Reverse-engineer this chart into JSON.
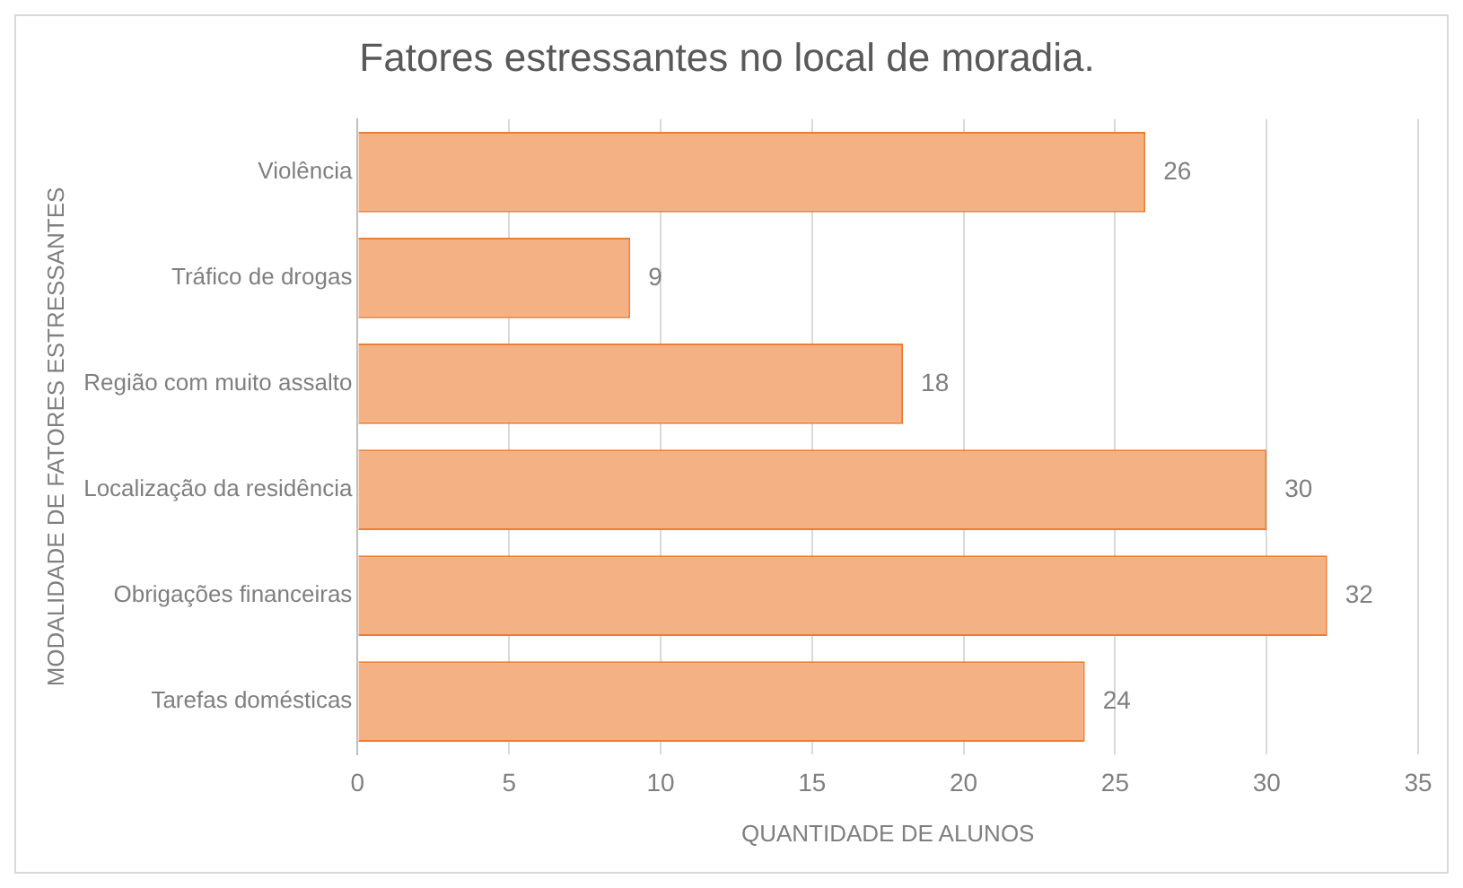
{
  "chart_data": {
    "type": "bar",
    "orientation": "horizontal",
    "title": "Fatores estressantes no local de moradia.",
    "xlabel": "QUANTIDADE DE ALUNOS",
    "ylabel": "MODALIDADE DE FATORES ESTRESSANTES",
    "categories": [
      "Violência",
      "Tráfico de drogas",
      "Região com muito assalto",
      "Localização da residência",
      "Obrigações financeiras",
      "Tarefas domésticas"
    ],
    "values": [
      26,
      9,
      18,
      30,
      32,
      24
    ],
    "color": "#f4b183",
    "xlim": [
      0,
      35
    ],
    "xticks": [
      0,
      5,
      10,
      15,
      20,
      25,
      30,
      35
    ],
    "grid": "x",
    "data_labels": true,
    "legend": false
  }
}
